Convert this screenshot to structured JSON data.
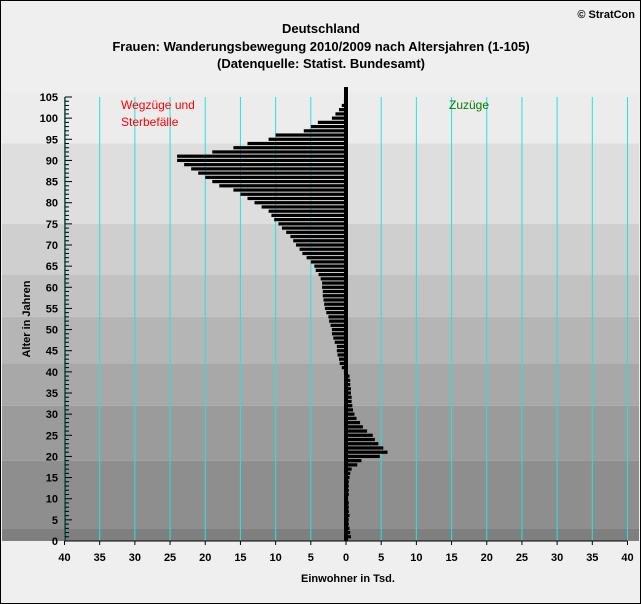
{
  "copyright": "© StratCon",
  "chart_data": {
    "type": "bar",
    "orientation": "horizontal",
    "title_lines": [
      "Deutschland",
      "Frauen: Wanderungsbewegung 2010/2009 nach Altersjahren (1-105)",
      "(Datenquelle: Statist. Bundesamt)"
    ],
    "xlabel": "Einwohner in Tsd.",
    "ylabel": "Alter in Jahren",
    "xlim": [
      -40,
      40
    ],
    "ylim": [
      0,
      105
    ],
    "x_ticks": [
      -40,
      -35,
      -30,
      -25,
      -20,
      -15,
      -10,
      -5,
      0,
      5,
      10,
      15,
      20,
      25,
      30,
      35,
      40
    ],
    "x_tick_labels": [
      "40",
      "35",
      "30",
      "25",
      "20",
      "15",
      "10",
      "5",
      "0",
      "5",
      "10",
      "15",
      "20",
      "25",
      "30",
      "35",
      "40"
    ],
    "y_ticks": [
      0,
      5,
      10,
      15,
      20,
      25,
      30,
      35,
      40,
      45,
      50,
      55,
      60,
      65,
      70,
      75,
      80,
      85,
      90,
      95,
      100,
      105
    ],
    "annotations": [
      {
        "text": "Wegzüge und",
        "color": "#ff0000"
      },
      {
        "text": "Sterbefälle",
        "color": "#ff0000"
      },
      {
        "text": "Zuzüge",
        "color": "#008000"
      }
    ],
    "grid": true,
    "series": [
      {
        "ages": [
          1,
          2,
          3,
          4,
          5,
          6,
          7,
          8,
          9,
          10,
          11,
          12,
          13,
          14,
          15,
          16,
          17,
          18,
          19,
          20,
          21,
          22,
          23,
          24,
          25,
          26,
          27,
          28,
          29,
          30,
          31,
          32,
          33,
          34,
          35,
          36,
          37,
          38,
          39,
          40,
          41,
          42,
          43,
          44,
          45,
          46,
          47,
          48,
          49,
          50,
          51,
          52,
          53,
          54,
          55,
          56,
          57,
          58,
          59,
          60,
          61,
          62,
          63,
          64,
          65,
          66,
          67,
          68,
          69,
          70,
          71,
          72,
          73,
          74,
          75,
          76,
          77,
          78,
          79,
          80,
          81,
          82,
          83,
          84,
          85,
          86,
          87,
          88,
          89,
          90,
          91,
          92,
          93,
          94,
          95,
          96,
          97,
          98,
          99,
          100,
          101,
          102,
          103,
          104,
          105
        ],
        "values": [
          0.7,
          0.6,
          0.5,
          0.4,
          0.4,
          0.5,
          0.4,
          0.4,
          0.4,
          0.3,
          0.4,
          0.4,
          0.4,
          0.4,
          0.5,
          0.6,
          0.8,
          1.6,
          2.2,
          4.8,
          5.9,
          5.3,
          4.6,
          4.1,
          3.8,
          3.0,
          2.4,
          2.0,
          1.5,
          1.2,
          1.0,
          0.9,
          0.8,
          0.8,
          0.7,
          0.7,
          0.6,
          0.6,
          0.5,
          -0.3,
          -0.6,
          -0.9,
          -1.0,
          -1.2,
          -1.3,
          -1.3,
          -1.6,
          -1.8,
          -2.0,
          -2.0,
          -2.2,
          -2.4,
          -2.5,
          -2.8,
          -3.0,
          -3.1,
          -3.2,
          -3.3,
          -3.3,
          -3.4,
          -3.4,
          -3.6,
          -3.9,
          -4.3,
          -4.5,
          -5.0,
          -5.6,
          -6.2,
          -6.6,
          -7.1,
          -7.5,
          -7.9,
          -8.5,
          -9.1,
          -9.6,
          -10.2,
          -10.6,
          -11.0,
          -12.0,
          -13.0,
          -14.0,
          -15.0,
          -16.0,
          -18.0,
          -19.0,
          -20.0,
          -21.0,
          -22.0,
          -23.0,
          -24.0,
          -24.0,
          -19.0,
          -16.0,
          -14.0,
          -11.0,
          -10.0,
          -6.0,
          -5.0,
          -4.0,
          -2.0,
          -1.5,
          -1.0,
          -0.6,
          -0.3,
          -0.1
        ]
      }
    ]
  }
}
